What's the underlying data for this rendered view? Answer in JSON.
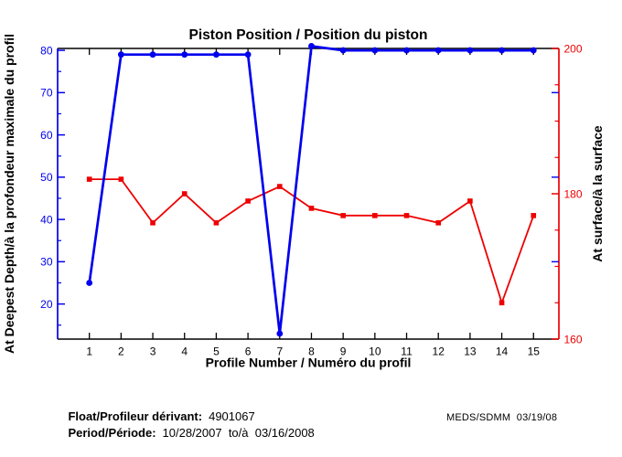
{
  "title": "Piston Position / Position du piston",
  "chart_data": {
    "type": "line",
    "title": "Piston Position / Position du piston",
    "xlabel": "Profile Number / Numéro du profil",
    "legend": "none",
    "grid": false,
    "x_axis": {
      "label": "Profile Number / Numéro du profil",
      "range": [
        0,
        15.8
      ],
      "ticks": [
        1,
        2,
        3,
        4,
        5,
        6,
        7,
        8,
        9,
        10,
        11,
        12,
        13,
        14,
        15
      ],
      "color": "#000000"
    },
    "left_axis": {
      "label": "At Deepest Depth/à la profondeur maximale du profil",
      "range": [
        11.7,
        80.45
      ],
      "major_ticks": [
        20,
        30,
        40,
        50,
        60,
        70,
        80
      ],
      "minor_step": 5,
      "color": "#0000ee"
    },
    "right_axis": {
      "label": "At surface/à la surface",
      "range": [
        160,
        200
      ],
      "major_ticks": [
        160,
        180,
        200
      ],
      "minor_step": 5,
      "mirrored_left_ticks": [
        30,
        50,
        70
      ],
      "color": "#ee0000"
    },
    "x": [
      1,
      2,
      3,
      4,
      5,
      6,
      7,
      8,
      9,
      10,
      11,
      12,
      13,
      14,
      15
    ],
    "series": [
      {
        "name": "At surface/à la surface",
        "axis": "right",
        "color": "#ee0000",
        "marker": "square",
        "values": [
          182,
          182,
          176,
          180,
          176,
          179,
          181,
          178,
          177,
          177,
          177,
          176,
          179,
          165,
          177
        ]
      },
      {
        "name": "At Deepest Depth/à la profondeur maximale du profil",
        "axis": "left",
        "color": "#0000ee",
        "marker": "circle",
        "values": [
          25,
          79,
          79,
          79,
          79,
          79,
          13,
          81,
          80,
          80,
          80,
          80,
          80,
          80,
          80
        ]
      }
    ]
  },
  "footer": {
    "float_label": "Float/Profileur dérivant:",
    "float_value": "4901067",
    "period_label": "Period/Période:",
    "period_value": "10/28/2007  to/à  03/16/2008",
    "credit": "MEDS/SDMM  03/19/08"
  }
}
